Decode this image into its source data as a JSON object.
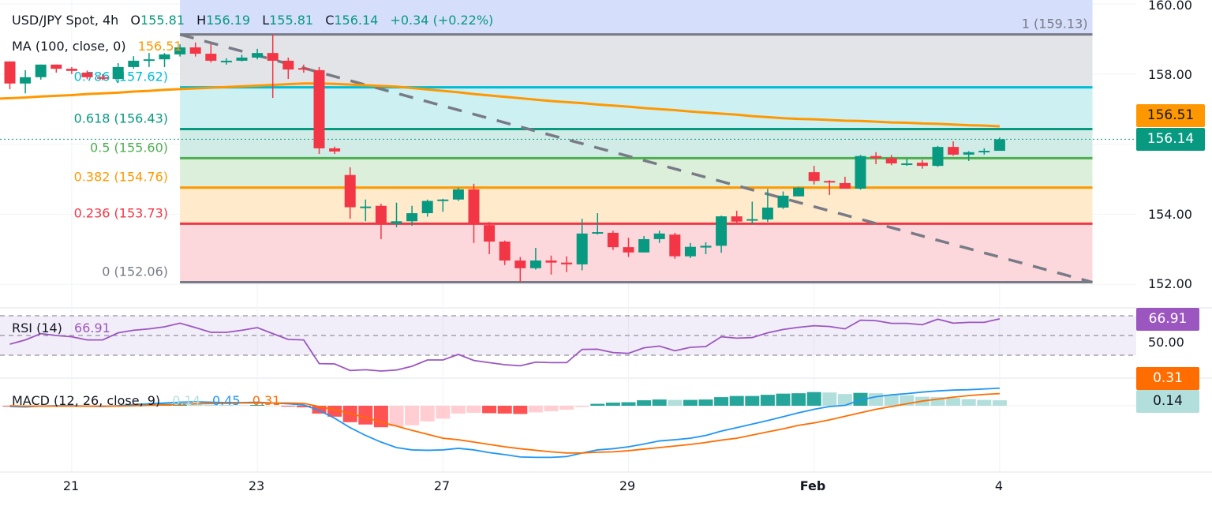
{
  "header": {
    "symbol": "USD/JPY Spot, 4h",
    "o_label": "O",
    "o": "155.81",
    "h_label": "H",
    "h": "156.19",
    "l_label": "L",
    "l": "155.81",
    "c_label": "C",
    "c": "156.14",
    "change": "+0.34 (+0.22%)"
  },
  "ma_legend": {
    "label": "MA (100, close, 0)",
    "value": "156.51"
  },
  "rsi_legend": {
    "label": "RSI (14)",
    "value": "66.91"
  },
  "macd_legend": {
    "label": "MACD (12, 26, close, 9)",
    "hist": "0.14",
    "macd": "0.45",
    "signal": "0.31"
  },
  "price_axis": [
    {
      "value": 160,
      "label": "160.00"
    },
    {
      "value": 158,
      "label": "158.00"
    },
    {
      "value": 154,
      "label": "154.00"
    },
    {
      "value": 152,
      "label": "152.00"
    }
  ],
  "rsi_axis": [
    {
      "value": 50,
      "label": "50.00"
    }
  ],
  "badges": {
    "ma": "156.51",
    "last": "156.14",
    "rsi": "66.91",
    "signal": "0.31",
    "hist": "0.14"
  },
  "colors": {
    "up": "#089981",
    "down": "#f23645",
    "ma": "#ff9800",
    "rsi": "#9c56c0",
    "macd": "#2196f3",
    "signal": "#ff6d00",
    "hist_up_strong": "#26a69a",
    "hist_up_weak": "#b2dfdb",
    "hist_down_strong": "#ff5252",
    "hist_down_weak": "#ffcdd2",
    "trendline": "#787b86"
  },
  "chart_data": {
    "type": "candlestick",
    "symbol": "USD/JPY Spot",
    "timeframe": "4h",
    "x_ticks": [
      {
        "index": 4,
        "label": "21"
      },
      {
        "index": 16,
        "label": "23"
      },
      {
        "index": 28,
        "label": "27"
      },
      {
        "index": 40,
        "label": "29"
      },
      {
        "index": 52,
        "label": "Feb"
      },
      {
        "index": 64,
        "label": "4"
      }
    ],
    "ylim": [
      151.8,
      160.0
    ],
    "candles_ohlc": [
      [
        158.36,
        158.36,
        157.57,
        157.73
      ],
      [
        157.73,
        158.11,
        157.45,
        157.91
      ],
      [
        157.91,
        158.27,
        157.84,
        158.27
      ],
      [
        158.27,
        158.27,
        158.04,
        158.15
      ],
      [
        158.15,
        158.2,
        158.0,
        158.09
      ],
      [
        158.04,
        158.1,
        157.85,
        157.91
      ],
      [
        157.91,
        158.0,
        157.82,
        157.89
      ],
      [
        157.86,
        158.31,
        157.75,
        158.2
      ],
      [
        158.2,
        158.51,
        158.15,
        158.38
      ],
      [
        158.38,
        158.6,
        158.2,
        158.42
      ],
      [
        158.42,
        158.6,
        158.2,
        158.56
      ],
      [
        158.56,
        158.85,
        158.5,
        158.76
      ],
      [
        158.76,
        158.9,
        158.5,
        158.58
      ],
      [
        158.58,
        158.85,
        158.33,
        158.38
      ],
      [
        158.36,
        158.45,
        158.27,
        158.38
      ],
      [
        158.38,
        158.55,
        158.36,
        158.47
      ],
      [
        158.47,
        158.72,
        158.42,
        158.6
      ],
      [
        158.6,
        159.13,
        157.32,
        158.38
      ],
      [
        158.38,
        158.47,
        157.86,
        158.13
      ],
      [
        158.17,
        158.27,
        158.04,
        158.13
      ],
      [
        158.11,
        158.2,
        155.72,
        155.88
      ],
      [
        155.88,
        155.93,
        155.72,
        155.79
      ],
      [
        155.12,
        155.34,
        153.87,
        154.2
      ],
      [
        154.2,
        154.42,
        153.8,
        154.22
      ],
      [
        154.24,
        154.3,
        153.29,
        153.73
      ],
      [
        153.73,
        154.33,
        153.63,
        153.8
      ],
      [
        153.8,
        154.24,
        153.67,
        154.03
      ],
      [
        154.03,
        154.42,
        153.93,
        154.38
      ],
      [
        154.38,
        154.44,
        154.07,
        154.42
      ],
      [
        154.42,
        154.76,
        154.38,
        154.71
      ],
      [
        154.71,
        154.87,
        153.18,
        153.73
      ],
      [
        153.69,
        153.78,
        152.86,
        153.22
      ],
      [
        153.22,
        153.25,
        152.55,
        152.68
      ],
      [
        152.68,
        152.78,
        152.06,
        152.46
      ],
      [
        152.46,
        153.04,
        152.42,
        152.68
      ],
      [
        152.68,
        152.82,
        152.28,
        152.62
      ],
      [
        152.62,
        152.8,
        152.35,
        152.57
      ],
      [
        152.57,
        153.87,
        152.4,
        153.45
      ],
      [
        153.45,
        154.03,
        153.42,
        153.49
      ],
      [
        153.47,
        153.53,
        152.98,
        153.06
      ],
      [
        153.06,
        153.33,
        152.78,
        152.91
      ],
      [
        152.91,
        153.38,
        152.91,
        153.29
      ],
      [
        153.29,
        153.53,
        153.18,
        153.45
      ],
      [
        153.42,
        153.47,
        152.73,
        152.8
      ],
      [
        152.8,
        153.18,
        152.75,
        153.07
      ],
      [
        153.05,
        153.2,
        152.86,
        153.1
      ],
      [
        153.1,
        153.96,
        152.9,
        153.94
      ],
      [
        153.94,
        154.1,
        153.73,
        153.79
      ],
      [
        153.82,
        154.36,
        153.7,
        153.86
      ],
      [
        153.85,
        154.72,
        153.78,
        154.19
      ],
      [
        154.19,
        154.65,
        154.15,
        154.53
      ],
      [
        154.51,
        154.78,
        154.51,
        154.76
      ],
      [
        155.2,
        155.38,
        154.85,
        154.95
      ],
      [
        154.95,
        154.97,
        154.55,
        154.92
      ],
      [
        154.89,
        155.07,
        154.73,
        154.73
      ],
      [
        154.73,
        155.69,
        154.7,
        155.66
      ],
      [
        155.66,
        155.77,
        155.43,
        155.6
      ],
      [
        155.6,
        155.69,
        155.4,
        155.45
      ],
      [
        155.43,
        155.58,
        155.38,
        155.45
      ],
      [
        155.47,
        155.55,
        155.3,
        155.38
      ],
      [
        155.38,
        155.95,
        155.35,
        155.92
      ],
      [
        155.92,
        156.08,
        155.67,
        155.7
      ],
      [
        155.7,
        155.8,
        155.52,
        155.77
      ],
      [
        155.77,
        155.88,
        155.7,
        155.81
      ],
      [
        155.81,
        156.19,
        155.81,
        156.14
      ]
    ],
    "ma100": [
      157.31,
      157.33,
      157.36,
      157.38,
      157.4,
      157.43,
      157.45,
      157.47,
      157.5,
      157.52,
      157.55,
      157.57,
      157.59,
      157.61,
      157.63,
      157.65,
      157.67,
      157.69,
      157.71,
      157.73,
      157.73,
      157.72,
      157.7,
      157.68,
      157.66,
      157.64,
      157.6,
      157.56,
      157.52,
      157.48,
      157.43,
      157.39,
      157.35,
      157.31,
      157.27,
      157.23,
      157.2,
      157.17,
      157.13,
      157.1,
      157.07,
      157.03,
      157.0,
      156.97,
      156.93,
      156.9,
      156.87,
      156.84,
      156.8,
      156.77,
      156.74,
      156.72,
      156.71,
      156.69,
      156.67,
      156.66,
      156.64,
      156.62,
      156.61,
      156.59,
      156.58,
      156.56,
      156.54,
      156.53,
      156.51
    ],
    "last_price": 156.14,
    "fibonacci": {
      "start_index": 11,
      "end_index": 70,
      "levels": [
        {
          "ratio": 1,
          "price": 159.13,
          "label": "1 (159.13)",
          "color": "#787b86",
          "fill": "#e3e4e7"
        },
        {
          "ratio": 0.786,
          "price": 157.62,
          "label": "0.786 (157.62)",
          "color": "#00bcd4",
          "fill": "#cdf0f3"
        },
        {
          "ratio": 0.618,
          "price": 156.43,
          "label": "0.618 (156.43)",
          "color": "#089981",
          "fill": "#d1ebe6"
        },
        {
          "ratio": 0.5,
          "price": 155.6,
          "label": "0.5 (155.60)",
          "color": "#4caf50",
          "fill": "#dcefdb"
        },
        {
          "ratio": 0.382,
          "price": 154.76,
          "label": "0.382 (154.76)",
          "color": "#ff9800",
          "fill": "#ffeacc"
        },
        {
          "ratio": 0.236,
          "price": 153.73,
          "label": "0.236 (153.73)",
          "color": "#f23645",
          "fill": "#fcd8dc"
        },
        {
          "ratio": 0,
          "price": 152.06,
          "label": "0 (152.06)",
          "color": "#787b86",
          "fill": null
        }
      ],
      "top_fill": "#d5defb"
    },
    "trendline": {
      "from": {
        "index": 11,
        "price": 159.13
      },
      "to": {
        "index": 70,
        "price": 152.06
      }
    },
    "rsi": {
      "period": 14,
      "levels": [
        70,
        50,
        30
      ],
      "ylim": [
        0,
        100
      ],
      "values": [
        41.2,
        45.5,
        51.9,
        50,
        48.7,
        45.5,
        45.5,
        52.7,
        55.3,
        56.7,
        58.8,
        62.5,
        58,
        53.2,
        53.2,
        55.3,
        58,
        51.9,
        46,
        45.5,
        21.5,
        21.2,
        14.5,
        15.3,
        14,
        15,
        18.8,
        25.2,
        25.2,
        30.8,
        24.7,
        22.5,
        20.4,
        19.3,
        23,
        22.5,
        22.5,
        35.9,
        36.1,
        32.7,
        31.9,
        37.5,
        39.3,
        34.5,
        38,
        38.8,
        48.7,
        47.3,
        47.9,
        52.7,
        56.1,
        58.3,
        59.9,
        59.1,
        56.7,
        65.5,
        65,
        62.3,
        62.3,
        60.9,
        66.5,
        62.5,
        63.3,
        63.3,
        66.91
      ]
    },
    "macd": {
      "params": [
        12,
        26,
        9
      ],
      "macd": [
        -0.02,
        -0.03,
        -0.01,
        0.0,
        0.0,
        -0.01,
        -0.02,
        0.0,
        0.03,
        0.05,
        0.07,
        0.09,
        0.1,
        0.09,
        0.08,
        0.08,
        0.09,
        0.07,
        0.05,
        0.02,
        -0.12,
        -0.32,
        -0.56,
        -0.76,
        -0.93,
        -1.07,
        -1.13,
        -1.14,
        -1.13,
        -1.09,
        -1.13,
        -1.2,
        -1.25,
        -1.31,
        -1.32,
        -1.32,
        -1.3,
        -1.21,
        -1.13,
        -1.1,
        -1.05,
        -0.98,
        -0.9,
        -0.87,
        -0.83,
        -0.76,
        -0.65,
        -0.56,
        -0.47,
        -0.38,
        -0.28,
        -0.18,
        -0.09,
        -0.02,
        0.01,
        0.15,
        0.23,
        0.28,
        0.31,
        0.35,
        0.38,
        0.4,
        0.41,
        0.43,
        0.45
      ],
      "signal": [
        0.0,
        -0.01,
        -0.01,
        -0.01,
        -0.01,
        -0.01,
        -0.01,
        -0.01,
        0.0,
        0.01,
        0.02,
        0.03,
        0.05,
        0.06,
        0.06,
        0.07,
        0.07,
        0.07,
        0.07,
        0.06,
        -0.02,
        -0.1,
        -0.2,
        -0.3,
        -0.42,
        -0.52,
        -0.63,
        -0.73,
        -0.83,
        -0.87,
        -0.93,
        -0.99,
        -1.05,
        -1.1,
        -1.14,
        -1.18,
        -1.21,
        -1.21,
        -1.19,
        -1.18,
        -1.15,
        -1.11,
        -1.07,
        -1.03,
        -0.99,
        -0.94,
        -0.88,
        -0.83,
        -0.75,
        -0.67,
        -0.59,
        -0.5,
        -0.44,
        -0.36,
        -0.27,
        -0.18,
        -0.09,
        -0.02,
        0.05,
        0.12,
        0.17,
        0.22,
        0.26,
        0.29,
        0.31
      ],
      "histogram": [
        -0.02,
        -0.02,
        0,
        0.01,
        0.01,
        0,
        -0.01,
        0.01,
        0.03,
        0.04,
        0.05,
        0.06,
        0.05,
        0.03,
        0.02,
        0.01,
        0.02,
        0,
        -0.02,
        -0.04,
        -0.2,
        -0.28,
        -0.42,
        -0.48,
        -0.55,
        -0.53,
        -0.5,
        -0.4,
        -0.33,
        -0.2,
        -0.18,
        -0.19,
        -0.2,
        -0.21,
        -0.17,
        -0.14,
        -0.1,
        -0.03,
        0.05,
        0.08,
        0.09,
        0.14,
        0.16,
        0.15,
        0.15,
        0.16,
        0.22,
        0.25,
        0.25,
        0.28,
        0.31,
        0.32,
        0.35,
        0.34,
        0.3,
        0.33,
        0.32,
        0.28,
        0.27,
        0.23,
        0.22,
        0.2,
        0.17,
        0.15,
        0.14
      ]
    }
  }
}
